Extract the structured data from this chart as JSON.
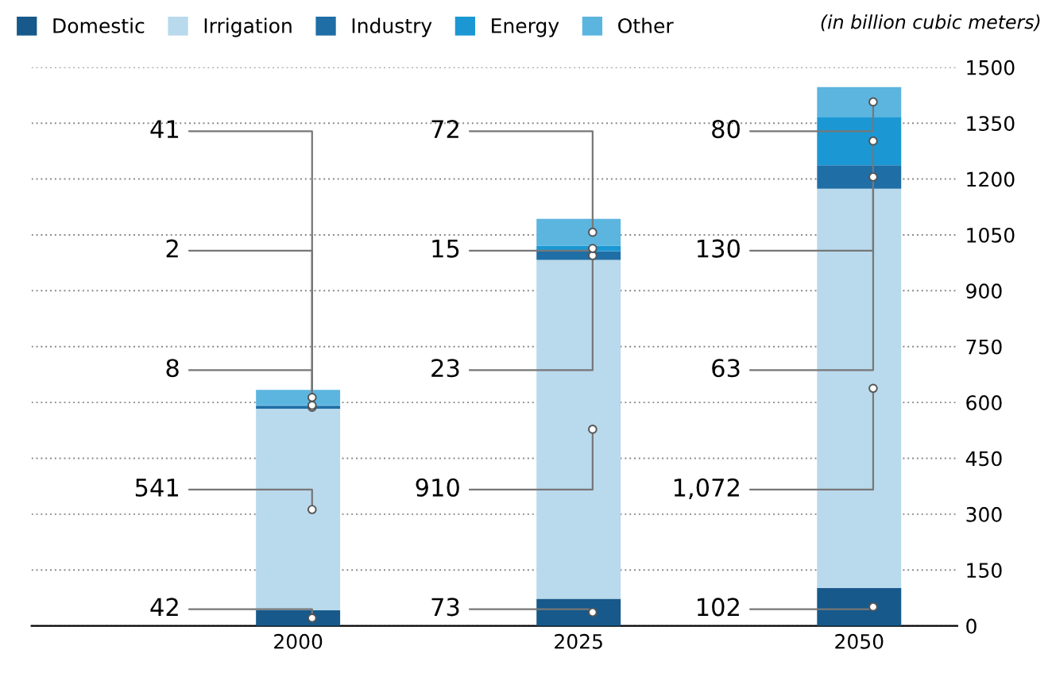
{
  "chart_data": {
    "type": "bar",
    "stacked": true,
    "categories": [
      "2000",
      "2025",
      "2050"
    ],
    "series": [
      {
        "name": "Domestic",
        "color": "#17598a",
        "values": [
          42,
          73,
          102
        ],
        "value_labels": [
          "42",
          "73",
          "102"
        ]
      },
      {
        "name": "Irrigation",
        "color": "#b9d9ec",
        "values": [
          541,
          910,
          1072
        ],
        "value_labels": [
          "541",
          "910",
          "1,072"
        ]
      },
      {
        "name": "Industry",
        "color": "#1f6ea6",
        "values": [
          8,
          23,
          63
        ],
        "value_labels": [
          "8",
          "23",
          "63"
        ]
      },
      {
        "name": "Energy",
        "color": "#1b98d4",
        "values": [
          2,
          15,
          130
        ],
        "value_labels": [
          "2",
          "15",
          "130"
        ]
      },
      {
        "name": "Other",
        "color": "#5bb5df",
        "values": [
          41,
          72,
          80
        ],
        "value_labels": [
          "41",
          "72",
          "80"
        ]
      }
    ],
    "ylim": [
      0,
      1500
    ],
    "yticks": [
      0,
      150,
      300,
      450,
      600,
      750,
      900,
      1050,
      1200,
      1350,
      1500
    ],
    "grid": "y",
    "legend": "top left",
    "annotations": [
      "(in billion cubic meters)"
    ]
  }
}
